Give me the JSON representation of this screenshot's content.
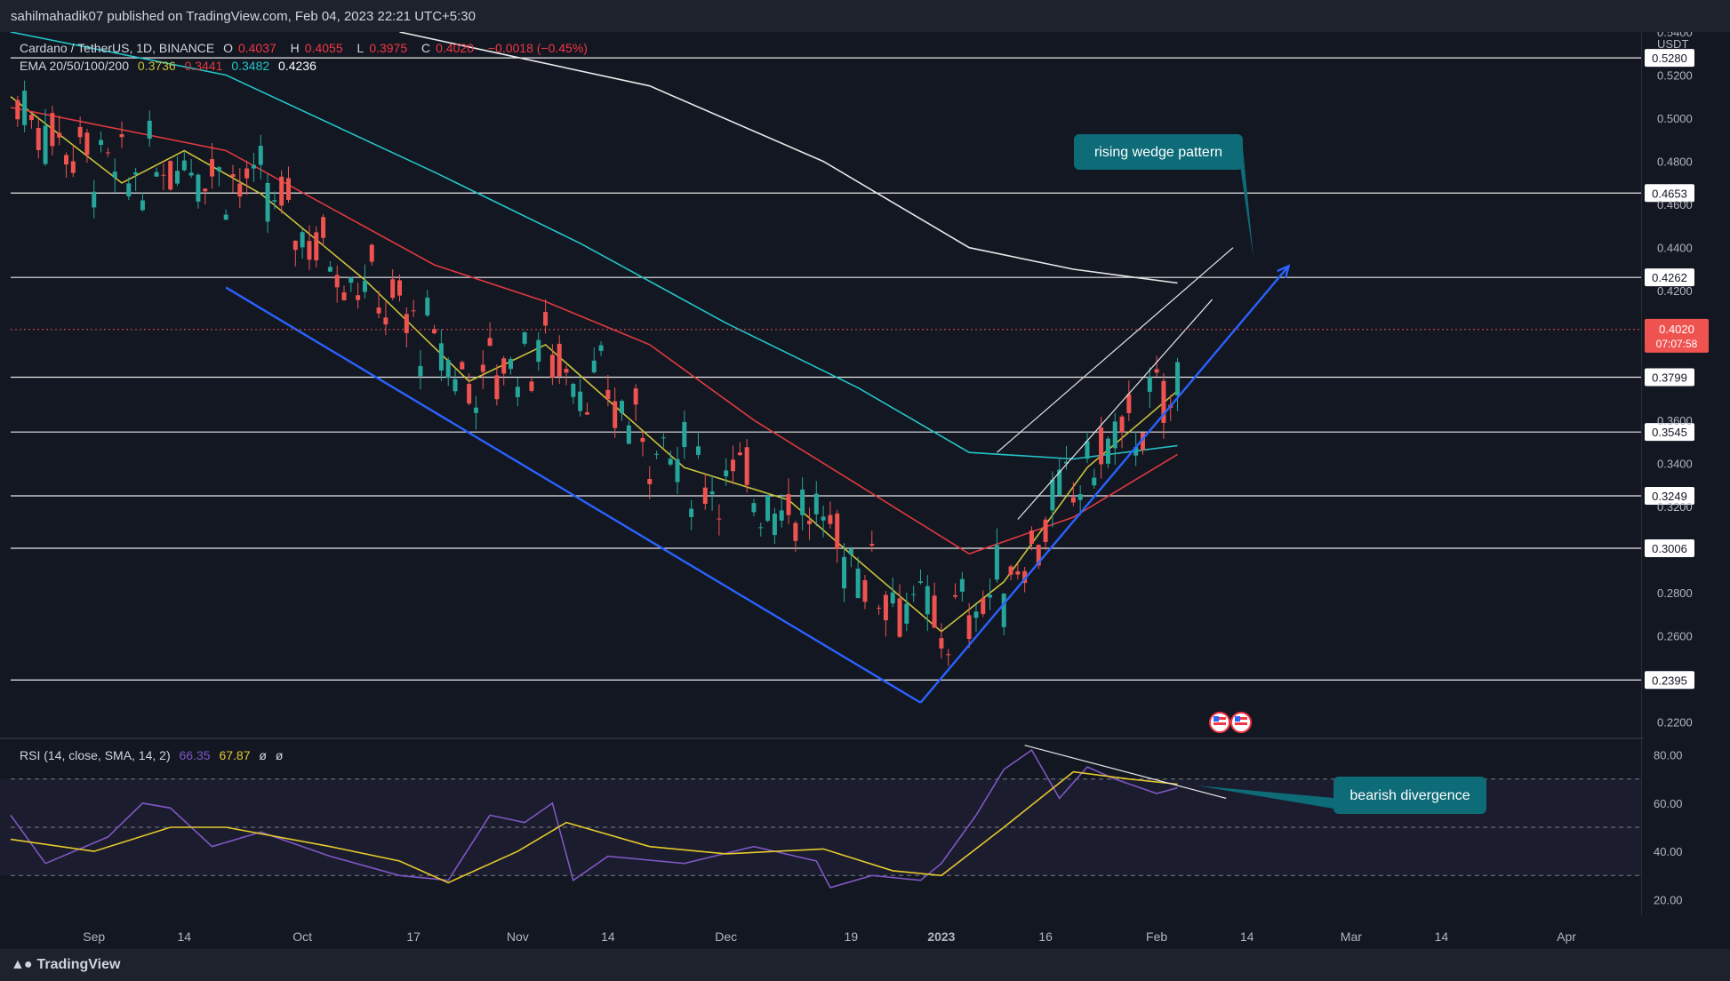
{
  "publisher": "sahilmahadik07 published on TradingView.com, Feb 04, 2023 22:21 UTC+5:30",
  "footer_logo": "TradingView",
  "legend": {
    "symbol": "Cardano / TetherUS, 1D, BINANCE",
    "open_label": "O",
    "open": "0.4037",
    "high_label": "H",
    "high": "0.4055",
    "low_label": "L",
    "low": "0.3975",
    "close_label": "C",
    "close": "0.4020",
    "change": "−0.0018 (−0.45%)",
    "ema_label": "EMA 20/50/100/200",
    "ema20": "0.3736",
    "ema50": "0.3441",
    "ema100": "0.3482",
    "ema200": "0.4236"
  },
  "rsi_legend": {
    "label": "RSI (14, close, SMA, 14, 2)",
    "rsi": "66.35",
    "sma": "67.87",
    "extra1": "ø",
    "extra2": "ø"
  },
  "colors": {
    "background": "#131722",
    "up": "#26a69a",
    "down": "#ef5350",
    "ema20": "#c9c23a",
    "ema50": "#e0393e",
    "ema100": "#22c5c8",
    "ema200": "#e8e8e8",
    "trendline": "#2962ff",
    "rsi": "#7e57c2",
    "rsi_sma": "#e6c92c",
    "annotation": "#0e6b78"
  },
  "chart_data": [
    {
      "type": "candlestick",
      "title": "Cardano / TetherUS, 1D, BINANCE",
      "ylabel": "USDT",
      "ylim": [
        0.212,
        0.54
      ],
      "x_range": [
        "2022-08-20",
        "2023-04-12"
      ],
      "x_tick_labels": [
        "Sep",
        "14",
        "Oct",
        "17",
        "Nov",
        "14",
        "Dec",
        "19",
        "2023",
        "16",
        "Feb",
        "14",
        "Mar",
        "14",
        "Apr"
      ],
      "y_tick_labels": [
        "0.2200",
        "0.2600",
        "0.2800",
        "0.3200",
        "0.3400",
        "0.3600",
        "0.4200",
        "0.4400",
        "0.4600",
        "0.4800",
        "0.5000",
        "0.5200",
        "0.5400"
      ],
      "horizontal_levels": [
        "0.5280",
        "0.4653",
        "0.4262",
        "0.3799",
        "0.3545",
        "0.3249",
        "0.3006",
        "0.2395"
      ],
      "last_price": {
        "value": "0.4020",
        "countdown": "07:07:58"
      },
      "series": [
        {
          "name": "EMA 20",
          "points": [
            [
              "2022-08-20",
              0.51
            ],
            [
              "2022-09-05",
              0.47
            ],
            [
              "2022-09-14",
              0.485
            ],
            [
              "2022-09-25",
              0.465
            ],
            [
              "2022-10-10",
              0.425
            ],
            [
              "2022-10-25",
              0.378
            ],
            [
              "2022-11-05",
              0.395
            ],
            [
              "2022-11-12",
              0.375
            ],
            [
              "2022-11-25",
              0.338
            ],
            [
              "2022-12-10",
              0.323
            ],
            [
              "2022-12-20",
              0.295
            ],
            [
              "2023-01-01",
              0.262
            ],
            [
              "2023-01-10",
              0.285
            ],
            [
              "2023-01-22",
              0.338
            ],
            [
              "2023-02-04",
              0.3736
            ]
          ]
        },
        {
          "name": "EMA 50",
          "points": [
            [
              "2022-08-20",
              0.505
            ],
            [
              "2022-09-20",
              0.485
            ],
            [
              "2022-10-20",
              0.432
            ],
            [
              "2022-11-05",
              0.415
            ],
            [
              "2022-11-20",
              0.395
            ],
            [
              "2022-12-05",
              0.36
            ],
            [
              "2022-12-20",
              0.33
            ],
            [
              "2023-01-05",
              0.298
            ],
            [
              "2023-01-20",
              0.315
            ],
            [
              "2023-02-04",
              0.3441
            ]
          ]
        },
        {
          "name": "EMA 100",
          "points": [
            [
              "2022-08-20",
              0.54
            ],
            [
              "2022-09-20",
              0.52
            ],
            [
              "2022-10-20",
              0.475
            ],
            [
              "2022-11-10",
              0.442
            ],
            [
              "2022-12-01",
              0.405
            ],
            [
              "2022-12-20",
              0.375
            ],
            [
              "2023-01-05",
              0.345
            ],
            [
              "2023-01-20",
              0.342
            ],
            [
              "2023-02-04",
              0.3482
            ]
          ]
        },
        {
          "name": "EMA 200",
          "points": [
            [
              "2022-10-15",
              0.54
            ],
            [
              "2022-11-20",
              0.515
            ],
            [
              "2022-12-15",
              0.48
            ],
            [
              "2023-01-05",
              0.44
            ],
            [
              "2023-01-20",
              0.43
            ],
            [
              "2023-02-04",
              0.4236
            ]
          ]
        }
      ],
      "annotations": [
        {
          "type": "trendline",
          "from": [
            "2022-09-20",
            0.4215
          ],
          "to": [
            "2022-12-29",
            0.229
          ]
        },
        {
          "type": "trendline_arrow",
          "from": [
            "2022-12-29",
            0.229
          ],
          "to": [
            "2023-02-20",
            0.4315
          ]
        },
        {
          "type": "line",
          "from": [
            "2023-01-09",
            0.345
          ],
          "to": [
            "2023-02-12",
            0.44
          ]
        },
        {
          "type": "line",
          "from": [
            "2023-01-12",
            0.314
          ],
          "to": [
            "2023-02-09",
            0.416
          ]
        },
        {
          "type": "label",
          "text": "rising wedge pattern"
        },
        {
          "type": "label",
          "text": "bearish divergence"
        }
      ]
    },
    {
      "type": "line",
      "title": "RSI (14, close, SMA, 14, 2)",
      "ylim": [
        15,
        85
      ],
      "y_tick_labels": [
        "20.00",
        "40.00",
        "60.00",
        "80.00"
      ],
      "bands": [
        30,
        50,
        70
      ],
      "series": [
        {
          "name": "RSI",
          "points": [
            [
              "2022-08-20",
              55
            ],
            [
              "2022-08-25",
              35
            ],
            [
              "2022-09-03",
              46
            ],
            [
              "2022-09-08",
              60
            ],
            [
              "2022-09-12",
              58
            ],
            [
              "2022-09-18",
              42
            ],
            [
              "2022-09-25",
              48
            ],
            [
              "2022-10-05",
              38
            ],
            [
              "2022-10-15",
              30
            ],
            [
              "2022-10-22",
              28
            ],
            [
              "2022-10-28",
              55
            ],
            [
              "2022-11-02",
              52
            ],
            [
              "2022-11-06",
              60
            ],
            [
              "2022-11-09",
              28
            ],
            [
              "2022-11-14",
              38
            ],
            [
              "2022-11-25",
              35
            ],
            [
              "2022-12-05",
              42
            ],
            [
              "2022-12-14",
              36
            ],
            [
              "2022-12-16",
              25
            ],
            [
              "2022-12-22",
              30
            ],
            [
              "2022-12-29",
              28
            ],
            [
              "2023-01-01",
              35
            ],
            [
              "2023-01-06",
              55
            ],
            [
              "2023-01-10",
              74
            ],
            [
              "2023-01-14",
              82
            ],
            [
              "2023-01-18",
              62
            ],
            [
              "2023-01-22",
              75
            ],
            [
              "2023-01-26",
              70
            ],
            [
              "2023-02-01",
              64
            ],
            [
              "2023-02-04",
              66.35
            ]
          ]
        },
        {
          "name": "SMA",
          "points": [
            [
              "2022-08-20",
              45
            ],
            [
              "2022-09-01",
              40
            ],
            [
              "2022-09-12",
              50
            ],
            [
              "2022-09-20",
              50
            ],
            [
              "2022-10-05",
              42
            ],
            [
              "2022-10-15",
              36
            ],
            [
              "2022-10-22",
              27
            ],
            [
              "2022-11-01",
              40
            ],
            [
              "2022-11-08",
              52
            ],
            [
              "2022-11-20",
              42
            ],
            [
              "2022-12-01",
              39
            ],
            [
              "2022-12-15",
              41
            ],
            [
              "2022-12-25",
              32
            ],
            [
              "2023-01-01",
              30
            ],
            [
              "2023-01-10",
              50
            ],
            [
              "2023-01-20",
              73
            ],
            [
              "2023-01-28",
              70
            ],
            [
              "2023-02-04",
              67.87
            ]
          ]
        }
      ],
      "annotations": [
        {
          "type": "line",
          "from": [
            "2023-01-13",
            84
          ],
          "to": [
            "2023-02-11",
            62
          ]
        }
      ]
    }
  ]
}
